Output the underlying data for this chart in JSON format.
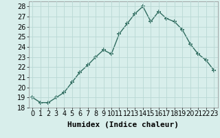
{
  "x": [
    0,
    1,
    2,
    3,
    4,
    5,
    6,
    7,
    8,
    9,
    10,
    11,
    12,
    13,
    14,
    15,
    16,
    17,
    18,
    19,
    20,
    21,
    22,
    23
  ],
  "y": [
    19.0,
    18.5,
    18.5,
    19.0,
    19.5,
    20.5,
    21.5,
    22.2,
    23.0,
    23.7,
    23.3,
    25.3,
    26.3,
    27.3,
    28.0,
    26.5,
    27.5,
    26.8,
    26.5,
    25.7,
    24.3,
    23.3,
    22.7,
    21.7
  ],
  "line_color": "#2e6b5e",
  "marker": "+",
  "marker_size": 4,
  "line_width": 1.0,
  "bg_color": "#d8eeeb",
  "grid_color": "#b8d8d4",
  "xlabel": "Humidex (Indice chaleur)",
  "xlabel_fontsize": 8,
  "tick_fontsize": 7,
  "xlim": [
    -0.5,
    23.5
  ],
  "ylim": [
    18,
    28.5
  ],
  "yticks": [
    18,
    19,
    20,
    21,
    22,
    23,
    24,
    25,
    26,
    27,
    28
  ],
  "xticks": [
    0,
    1,
    2,
    3,
    4,
    5,
    6,
    7,
    8,
    9,
    10,
    11,
    12,
    13,
    14,
    15,
    16,
    17,
    18,
    19,
    20,
    21,
    22,
    23
  ]
}
